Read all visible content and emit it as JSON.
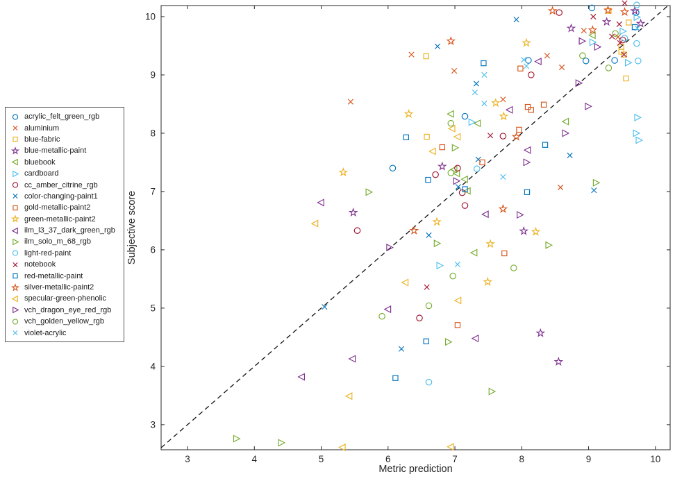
{
  "chart_data": {
    "type": "scatter",
    "title": "",
    "xlabel": "Metric prediction",
    "ylabel": "Subjective score",
    "xlim": [
      2.605,
      10.22
    ],
    "ylim": [
      2.57,
      10.19
    ],
    "x_ticks": [
      3,
      4,
      5,
      6,
      7,
      8,
      9,
      10
    ],
    "y_ticks": [
      3,
      4,
      5,
      6,
      7,
      8,
      9,
      10
    ],
    "grid": false,
    "legend_position": "outside-left",
    "axis_color": "#262626",
    "identity_line": {
      "style": "dashed",
      "color": "#111111",
      "from": [
        2.605,
        2.605
      ],
      "to": [
        10.19,
        10.19
      ]
    },
    "series": [
      {
        "name": "acrylic_felt_green_rgb",
        "marker": "circle",
        "color": "#0072BD",
        "points": [
          [
            8.1,
            9.25
          ],
          [
            6.07,
            7.4
          ],
          [
            7.15,
            8.29
          ],
          [
            9.05,
            10.15
          ],
          [
            9.71,
            10.07
          ],
          [
            8.96,
            9.24
          ],
          [
            9.39,
            9.25
          ]
        ]
      },
      {
        "name": "aluminium",
        "marker": "x",
        "color": "#D95319",
        "points": [
          [
            6.35,
            9.35
          ],
          [
            6.99,
            9.07
          ],
          [
            5.44,
            8.54
          ],
          [
            7.72,
            8.58
          ],
          [
            8.38,
            9.33
          ],
          [
            8.93,
            9.76
          ],
          [
            8.6,
            9.13
          ],
          [
            9.44,
            9.65
          ],
          [
            8.58,
            7.07
          ]
        ]
      },
      {
        "name": "blue-fabric",
        "marker": "square",
        "color": "#EDB120",
        "points": [
          [
            6.57,
            9.32
          ],
          [
            6.58,
            7.94
          ],
          [
            9.3,
            10.1
          ],
          [
            9.6,
            9.9
          ],
          [
            9.49,
            9.48
          ],
          [
            9.49,
            9.4
          ],
          [
            9.53,
            9.35
          ],
          [
            9.56,
            8.94
          ]
        ]
      },
      {
        "name": "blue-metallic-paint",
        "marker": "pentagram",
        "color": "#7E2F8E",
        "points": [
          [
            6.81,
            7.43
          ],
          [
            5.48,
            6.64
          ],
          [
            8.03,
            6.32
          ],
          [
            9.69,
            10.1
          ],
          [
            9.27,
            9.91
          ],
          [
            8.74,
            9.8
          ],
          [
            9.78,
            9.88
          ],
          [
            8.28,
            4.57
          ],
          [
            8.55,
            4.08
          ]
        ]
      },
      {
        "name": "bluebook",
        "marker": "triangle-left",
        "color": "#77AC30",
        "points": [
          [
            6.94,
            8.33
          ],
          [
            7.34,
            8.17
          ],
          [
            6.99,
            7.38
          ],
          [
            7.03,
            7.31
          ],
          [
            7.15,
            7.21
          ],
          [
            7.19,
            7.01
          ],
          [
            8.66,
            8.2
          ],
          [
            9.06,
            9.68
          ],
          [
            7.29,
            5.95
          ]
        ]
      },
      {
        "name": "cardboard",
        "marker": "triangle-right",
        "color": "#4DBEEE",
        "points": [
          [
            7.25,
            8.19
          ],
          [
            9.72,
            9.99
          ],
          [
            9.51,
            9.75
          ],
          [
            9.06,
            9.56
          ],
          [
            9.59,
            9.21
          ],
          [
            9.73,
            8.27
          ],
          [
            9.71,
            8.0
          ],
          [
            9.75,
            7.88
          ],
          [
            6.77,
            5.73
          ]
        ]
      },
      {
        "name": "cc_amber_citrine_rgb",
        "marker": "circle",
        "color": "#A2142F",
        "points": [
          [
            8.14,
            9.0
          ],
          [
            8.56,
            10.07
          ],
          [
            7.72,
            7.95
          ],
          [
            7.04,
            7.4
          ],
          [
            6.71,
            7.29
          ],
          [
            7.11,
            6.98
          ],
          [
            7.15,
            6.76
          ],
          [
            5.54,
            6.33
          ],
          [
            6.47,
            4.83
          ],
          [
            9.51,
            9.6
          ]
        ]
      },
      {
        "name": "color-changing-paint1",
        "marker": "x",
        "color": "#0072BD",
        "points": [
          [
            7.92,
            9.95
          ],
          [
            6.74,
            9.49
          ],
          [
            7.32,
            8.85
          ],
          [
            8.72,
            7.62
          ],
          [
            9.08,
            7.02
          ],
          [
            7.35,
            7.55
          ],
          [
            7.05,
            7.08
          ],
          [
            6.61,
            6.25
          ],
          [
            5.05,
            5.02
          ],
          [
            6.2,
            4.3
          ]
        ]
      },
      {
        "name": "gold-metallic-paint2",
        "marker": "square",
        "color": "#D95319",
        "points": [
          [
            7.98,
            9.11
          ],
          [
            8.09,
            8.45
          ],
          [
            8.14,
            8.4
          ],
          [
            7.96,
            8.06
          ],
          [
            6.81,
            7.76
          ],
          [
            8.33,
            8.49
          ],
          [
            7.41,
            7.5
          ],
          [
            7.74,
            5.94
          ],
          [
            7.04,
            4.71
          ]
        ]
      },
      {
        "name": "green-metallic-paint2",
        "marker": "pentagram",
        "color": "#EDB120",
        "points": [
          [
            8.07,
            9.55
          ],
          [
            6.31,
            8.33
          ],
          [
            7.61,
            8.52
          ],
          [
            7.73,
            8.29
          ],
          [
            5.33,
            7.33
          ],
          [
            6.73,
            6.48
          ],
          [
            8.21,
            6.31
          ],
          [
            7.53,
            6.1
          ],
          [
            7.49,
            5.45
          ]
        ]
      },
      {
        "name": "ilm_l3_37_dark_green_rgb",
        "marker": "triangle-left",
        "color": "#7E2F8E",
        "points": [
          [
            8.25,
            9.23
          ],
          [
            7.82,
            8.4
          ],
          [
            8.09,
            7.71
          ],
          [
            5.0,
            6.81
          ],
          [
            7.46,
            6.61
          ],
          [
            6.0,
            4.98
          ],
          [
            7.31,
            4.48
          ],
          [
            5.47,
            4.13
          ],
          [
            4.71,
            3.82
          ]
        ]
      },
      {
        "name": "ilm_solo_m_68_rgb",
        "marker": "triangle-right",
        "color": "#77AC30",
        "points": [
          [
            7.0,
            7.75
          ],
          [
            5.71,
            6.99
          ],
          [
            9.11,
            7.15
          ],
          [
            6.73,
            6.11
          ],
          [
            8.4,
            6.08
          ],
          [
            6.9,
            4.42
          ],
          [
            7.55,
            3.57
          ],
          [
            3.73,
            2.76
          ],
          [
            4.4,
            2.69
          ]
        ]
      },
      {
        "name": "light-red-paint",
        "marker": "circle",
        "color": "#4DBEEE",
        "points": [
          [
            9.72,
            10.2
          ],
          [
            9.72,
            9.54
          ],
          [
            9.54,
            9.63
          ],
          [
            9.74,
            9.24
          ],
          [
            7.33,
            7.39
          ],
          [
            6.61,
            3.73
          ]
        ]
      },
      {
        "name": "notebook",
        "marker": "x",
        "color": "#A2142F",
        "points": [
          [
            9.54,
            10.23
          ],
          [
            9.07,
            10.0
          ],
          [
            9.46,
            9.87
          ],
          [
            9.35,
            9.66
          ],
          [
            9.47,
            9.55
          ],
          [
            9.53,
            9.35
          ],
          [
            7.53,
            7.96
          ],
          [
            6.58,
            5.36
          ]
        ]
      },
      {
        "name": "red-metallic-paint",
        "marker": "square",
        "color": "#0072BD",
        "points": [
          [
            7.43,
            9.2
          ],
          [
            6.27,
            7.93
          ],
          [
            8.35,
            7.8
          ],
          [
            6.6,
            7.2
          ],
          [
            7.15,
            7.04
          ],
          [
            8.08,
            6.99
          ],
          [
            9.69,
            9.82
          ],
          [
            6.57,
            4.43
          ],
          [
            6.11,
            3.8
          ]
        ]
      },
      {
        "name": "silver-metallic-paint2",
        "marker": "pentagram",
        "color": "#D95319",
        "points": [
          [
            6.94,
            9.58
          ],
          [
            8.46,
            10.1
          ],
          [
            9.29,
            10.11
          ],
          [
            9.54,
            10.08
          ],
          [
            9.06,
            9.77
          ],
          [
            7.92,
            7.94
          ],
          [
            7.72,
            6.7
          ],
          [
            6.39,
            6.33
          ]
        ]
      },
      {
        "name": "specular-green-phenolic",
        "marker": "triangle-left",
        "color": "#EDB120",
        "points": [
          [
            6.96,
            8.08
          ],
          [
            7.04,
            7.94
          ],
          [
            6.67,
            7.69
          ],
          [
            4.91,
            6.45
          ],
          [
            6.26,
            5.44
          ],
          [
            7.05,
            5.13
          ],
          [
            5.42,
            3.49
          ],
          [
            5.32,
            2.61
          ],
          [
            6.94,
            2.62
          ]
        ]
      },
      {
        "name": "vch_dragon_eye_red_rgb",
        "marker": "triangle-right",
        "color": "#7E2F8E",
        "points": [
          [
            8.07,
            7.5
          ],
          [
            8.85,
            8.86
          ],
          [
            8.99,
            8.46
          ],
          [
            8.65,
            8.0
          ],
          [
            8.9,
            9.58
          ],
          [
            9.13,
            9.48
          ],
          [
            7.97,
            6.6
          ],
          [
            7.02,
            7.18
          ],
          [
            6.02,
            6.04
          ]
        ]
      },
      {
        "name": "vch_golden_yellow_rgb",
        "marker": "circle",
        "color": "#77AC30",
        "points": [
          [
            6.94,
            8.17
          ],
          [
            6.94,
            7.32
          ],
          [
            9.4,
            9.71
          ],
          [
            8.91,
            9.33
          ],
          [
            9.3,
            9.12
          ],
          [
            6.97,
            5.55
          ],
          [
            7.88,
            5.69
          ],
          [
            6.61,
            5.04
          ],
          [
            5.91,
            4.86
          ]
        ]
      },
      {
        "name": "violet-acrylic",
        "marker": "x",
        "color": "#4DBEEE",
        "points": [
          [
            8.03,
            9.26
          ],
          [
            8.07,
            9.15
          ],
          [
            7.44,
            9.0
          ],
          [
            7.3,
            8.7
          ],
          [
            7.44,
            8.51
          ],
          [
            7.72,
            7.25
          ],
          [
            7.04,
            5.75
          ],
          [
            9.73,
            9.8
          ]
        ]
      }
    ]
  }
}
